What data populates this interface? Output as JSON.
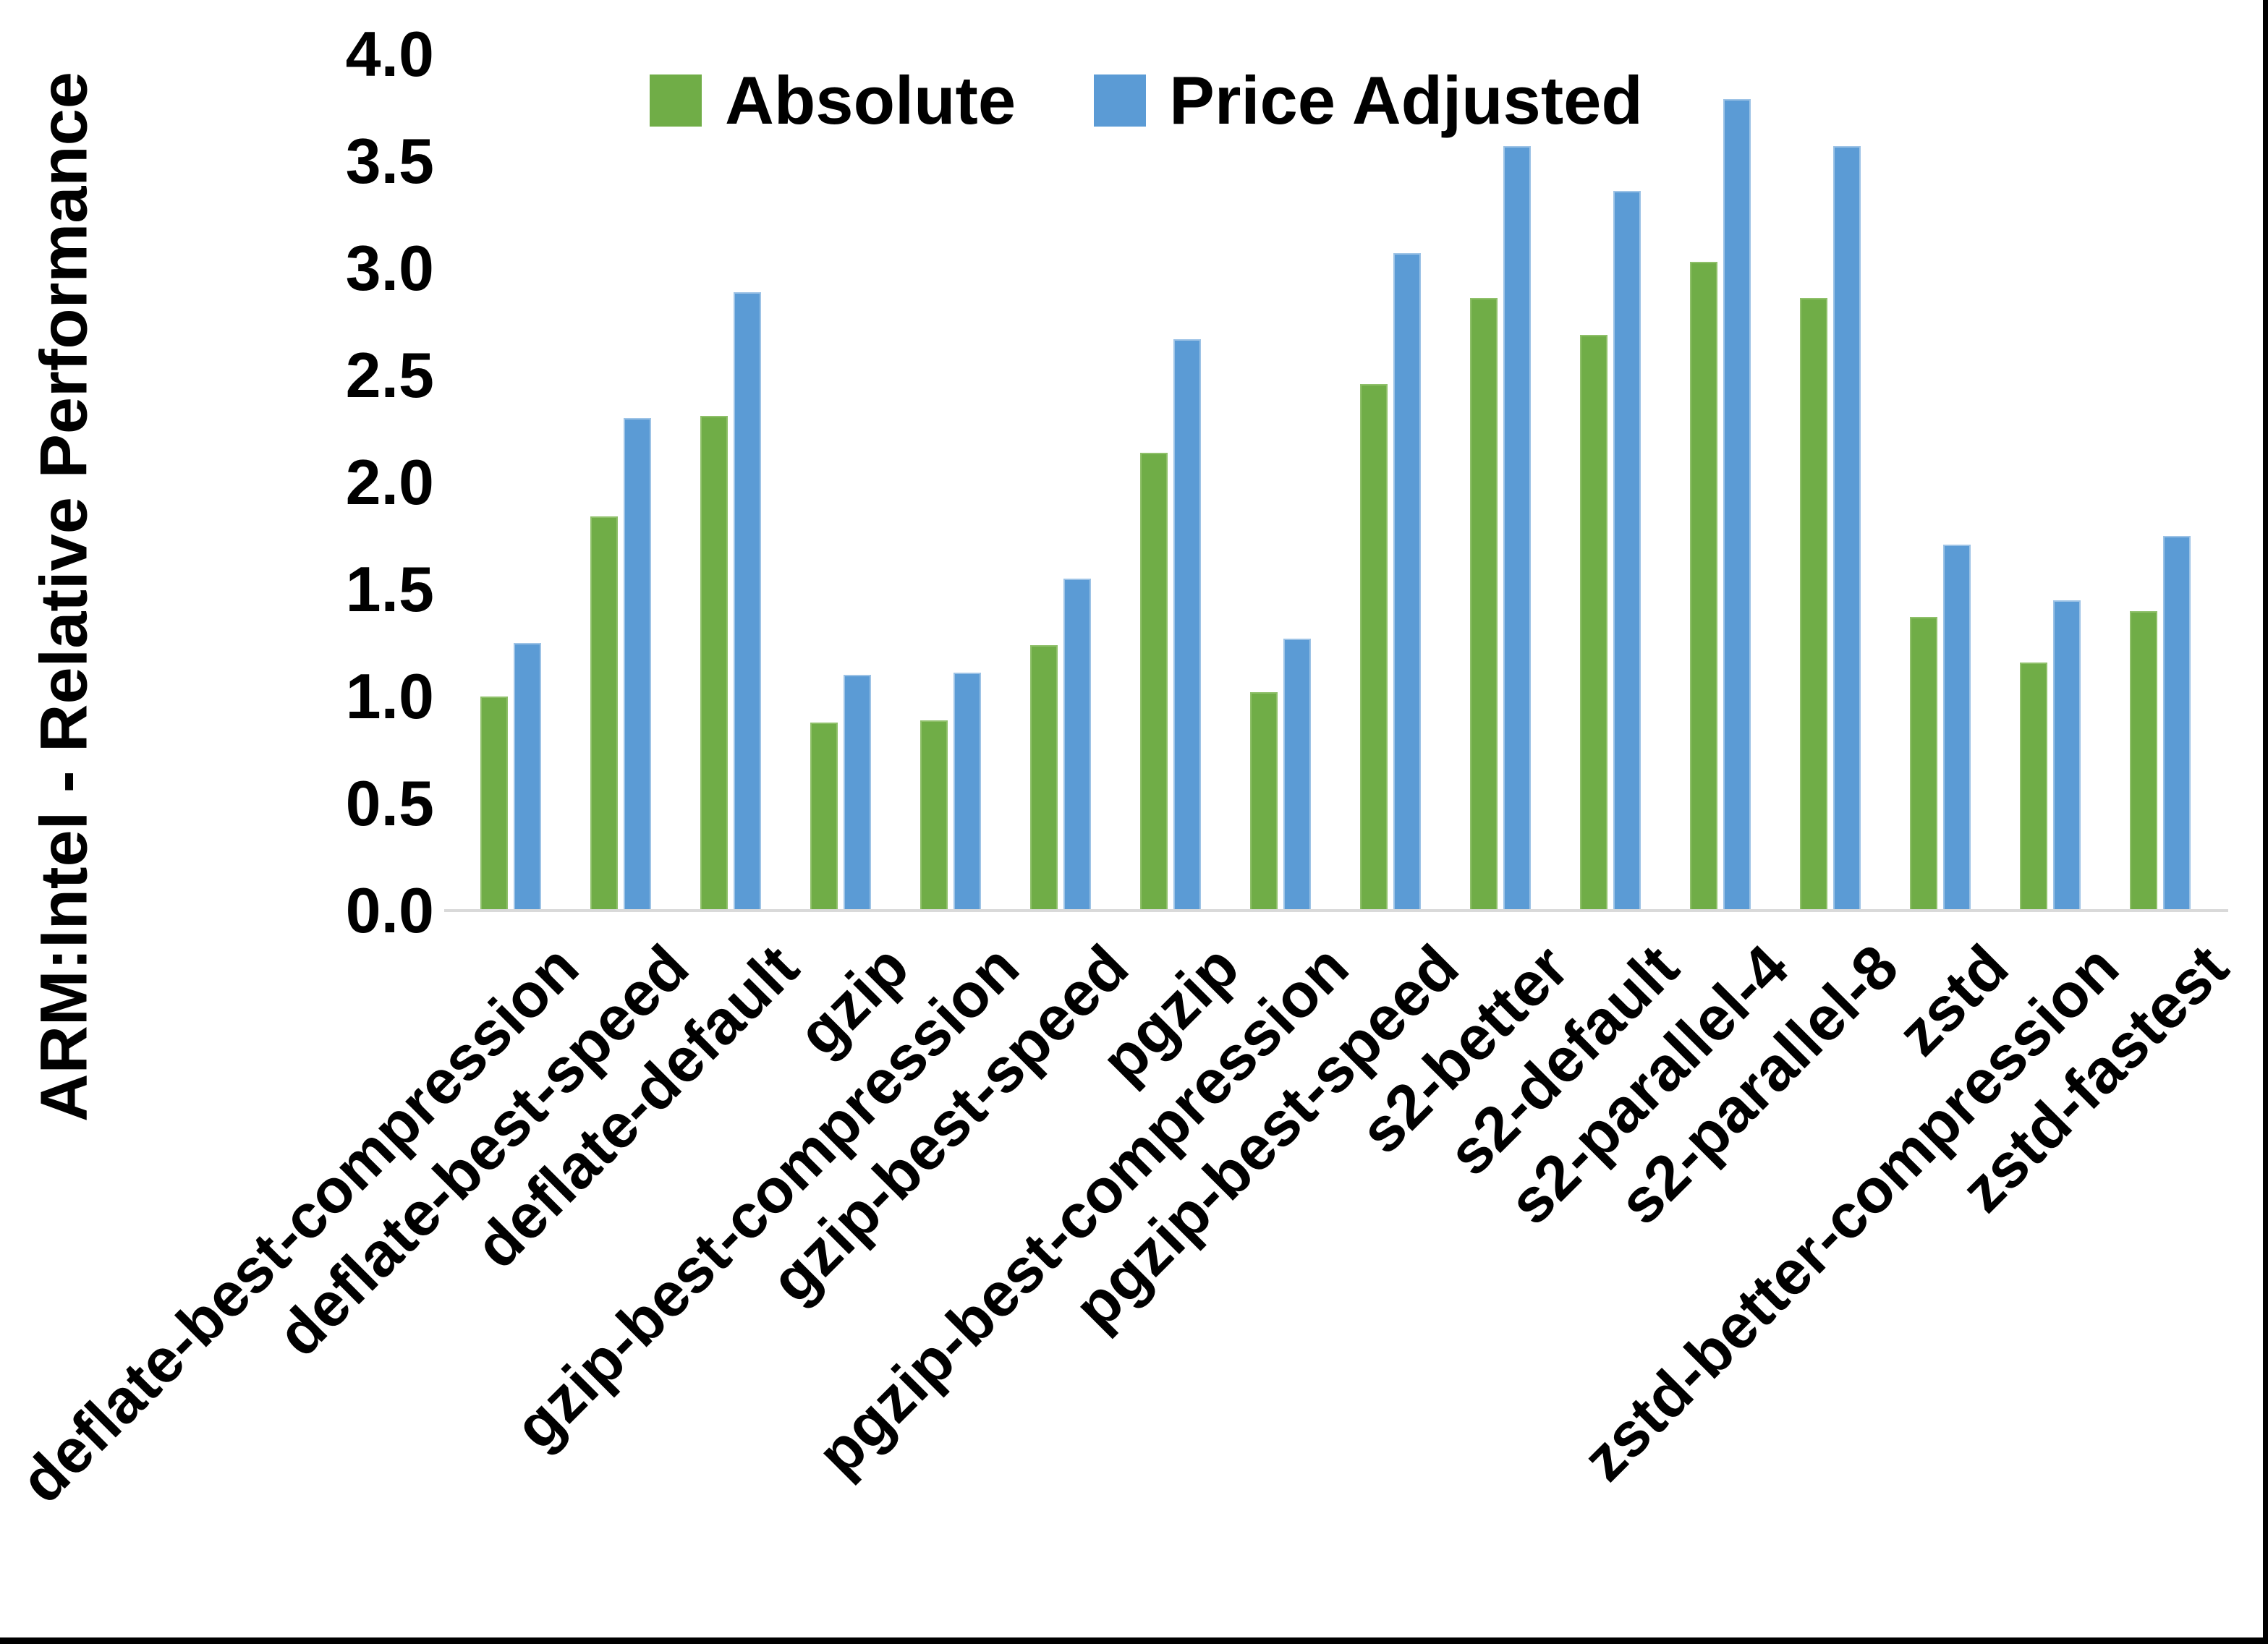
{
  "chart_data": {
    "type": "bar",
    "title": "",
    "xlabel": "",
    "ylabel": "ARM:Intel - Relative Performance",
    "ylim": [
      0.0,
      4.0
    ],
    "ytick_step": 0.5,
    "grid": false,
    "legend_position": "top-center",
    "background_color": "#ffffff",
    "axis_line_color": "#d9d9d9",
    "categories": [
      "deflate-best-compression",
      "deflate-best-speed",
      "deflate-default",
      "gzip",
      "gzip-best-compression",
      "gzip-best-speed",
      "pgzip",
      "pgzip-best-compression",
      "pgzip-best-speed",
      "s2-better",
      "s2-default",
      "s2-parallel-4",
      "s2-parallel-8",
      "zstd",
      "zstd-better-compression",
      "zstd-fastest"
    ],
    "series": [
      {
        "name": "Absolute",
        "color": "#70AD47",
        "edge_color": "#8fc06a",
        "values": [
          1.0,
          1.84,
          2.31,
          0.88,
          0.89,
          1.24,
          2.14,
          1.02,
          2.46,
          2.86,
          2.69,
          3.03,
          2.86,
          1.37,
          1.16,
          1.4
        ]
      },
      {
        "name": "Price Adjusted",
        "color": "#5B9BD5",
        "edge_color": "#9dc3e6",
        "values": [
          1.25,
          2.3,
          2.89,
          1.1,
          1.11,
          1.55,
          2.67,
          1.27,
          3.07,
          3.57,
          3.36,
          3.79,
          3.57,
          1.71,
          1.45,
          1.75
        ]
      }
    ]
  }
}
